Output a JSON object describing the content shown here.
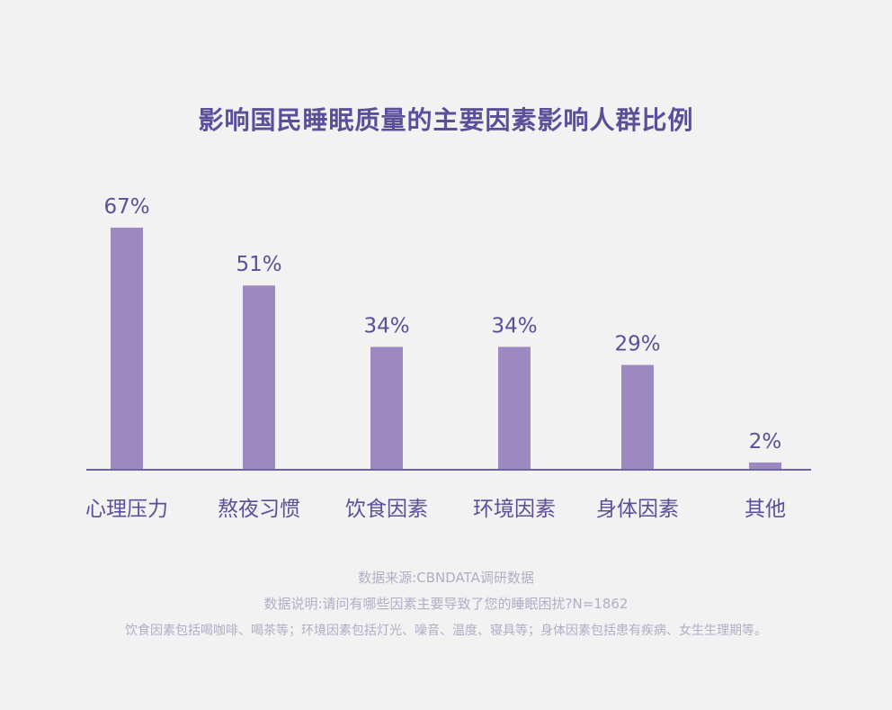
{
  "chart_data": {
    "type": "bar",
    "title": "影响国民睡眠质量的主要因素影响人群比例",
    "categories": [
      "心理压力",
      "熬夜习惯",
      "饮食因素",
      "环境因素",
      "身体因素",
      "其他"
    ],
    "values": [
      67,
      51,
      34,
      34,
      29,
      2
    ],
    "data_labels": [
      "67%",
      "51%",
      "34%",
      "34%",
      "29%",
      "2%"
    ],
    "unit": "%",
    "xlabel": "",
    "ylabel": "",
    "ylim": [
      0,
      67
    ],
    "grid": false,
    "legend": "none"
  },
  "colors": {
    "bar": "#9b89c0",
    "title": "#5c4f9a",
    "label": "#5c4f9a",
    "axis": "#6e63a6",
    "notes": "#b1aec4",
    "background": "#f2f2f3"
  },
  "notes": {
    "source": "数据来源:CBNDATA调研数据",
    "description": "数据说明:请问有哪些因素主要导致了您的睡眠困扰?N=1862",
    "detail": "饮食因素包括喝咖啡、喝茶等；环境因素包括灯光、噪音、温度、寝具等；身体因素包括患有疾病、女生生理期等。"
  }
}
